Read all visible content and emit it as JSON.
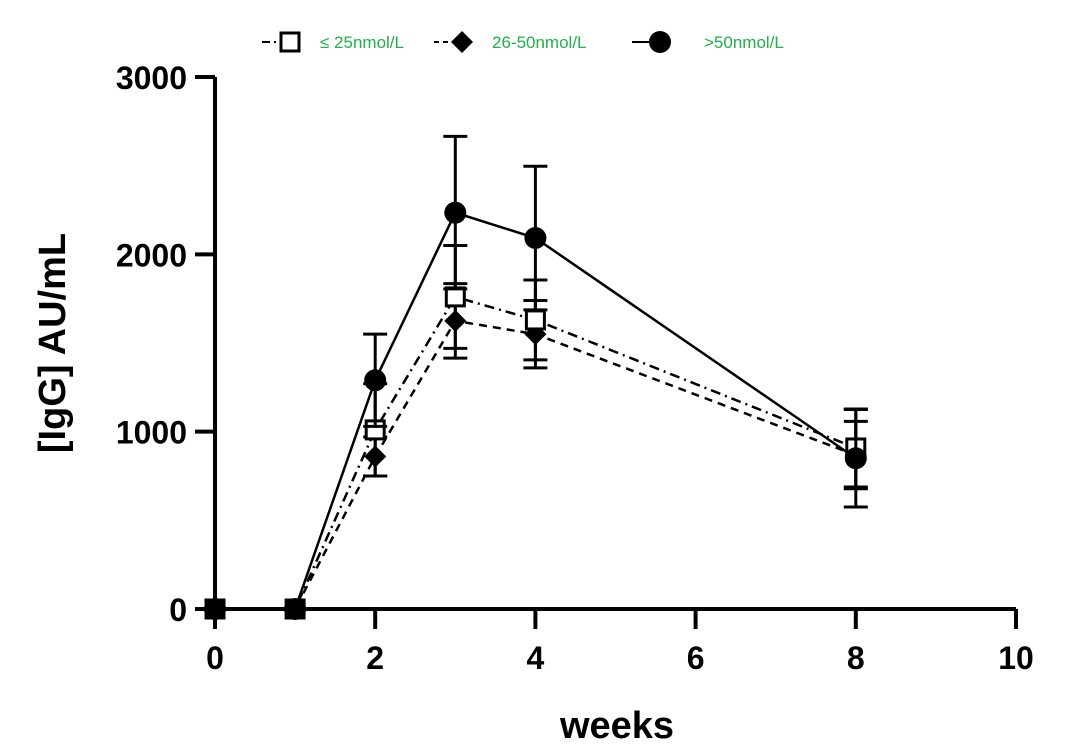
{
  "chart_data": {
    "type": "line",
    "title": "",
    "xlabel": "weeks",
    "ylabel": "[IgG] AU/mL",
    "xlim": [
      0,
      10
    ],
    "ylim": [
      0,
      3000
    ],
    "x_ticks": [
      "0",
      "2",
      "4",
      "6",
      "8",
      "10"
    ],
    "y_ticks": [
      "0",
      "1000",
      "2000",
      "3000"
    ],
    "grid": false,
    "legend_position": "top-center",
    "legend_color": "#22b04a",
    "x": [
      0,
      1,
      2,
      3,
      4,
      8
    ],
    "series": [
      {
        "name": "≤ 25nmol/L",
        "marker": "open-square",
        "line": "dash-dot",
        "values": [
          0,
          0,
          1010,
          1760,
          1630,
          908
        ],
        "error": [
          0,
          0,
          260,
          290,
          225,
          220
        ]
      },
      {
        "name": "26-50nmol/L",
        "marker": "filled-diamond",
        "line": "dashed",
        "values": [
          0,
          0,
          860,
          1625,
          1550,
          868
        ],
        "error": [
          0,
          0,
          110,
          210,
          190,
          190
        ]
      },
      {
        "name": ">50nmol/L",
        "marker": "filled-circle",
        "line": "solid",
        "values": [
          0,
          0,
          1290,
          2235,
          2092,
          850
        ],
        "error": [
          0,
          0,
          260,
          430,
          405,
          275
        ]
      }
    ]
  }
}
